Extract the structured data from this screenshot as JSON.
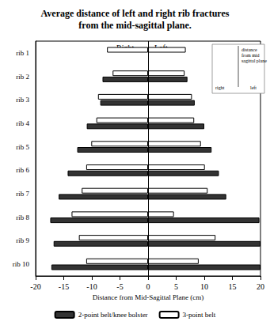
{
  "chart_data": {
    "type": "bar",
    "orientation": "horizontal",
    "title": "Average distance of left and right rib fractures\nfrom the mid-sagittal plane.",
    "x_label": "Distance from Mid-Sagittal Plane (cm)",
    "annotations": [
      "Right",
      "Left"
    ],
    "inset": {
      "caption": "distance\nfrom mid\nsagittal plane",
      "right": "right",
      "left": "left"
    },
    "categories": [
      "rib 1",
      "rib 2",
      "rib 3",
      "rib 4",
      "rib 5",
      "rib 6",
      "rib 7",
      "rib 8",
      "rib 9",
      "rib 10"
    ],
    "series": [
      {
        "name": "2-point belt/knee bolster",
        "color": "#333333",
        "right": [
          null,
          -8.1,
          -8.5,
          -10.9,
          -12.6,
          -14.3,
          -15.9,
          -17.4,
          -16.8,
          -17.2
        ],
        "left": [
          null,
          7.0,
          8.3,
          10.0,
          11.3,
          12.6,
          13.9,
          19.8,
          20,
          20
        ]
      },
      {
        "name": "3-point belt",
        "color": "#ffffff",
        "right": [
          -7.3,
          -6.3,
          -8.9,
          -9.2,
          -10.1,
          -11.0,
          -11.8,
          -13.6,
          -12.3,
          -11.0
        ],
        "left": [
          6.7,
          6.5,
          7.8,
          8.2,
          9.4,
          10.1,
          10.6,
          4.6,
          12.0,
          9.0
        ]
      }
    ],
    "xlim": [
      -20,
      20
    ],
    "xticks": [
      -20,
      -15,
      -10,
      -5,
      0,
      5,
      10,
      15,
      20
    ],
    "grid": false,
    "legend": "bottom"
  }
}
